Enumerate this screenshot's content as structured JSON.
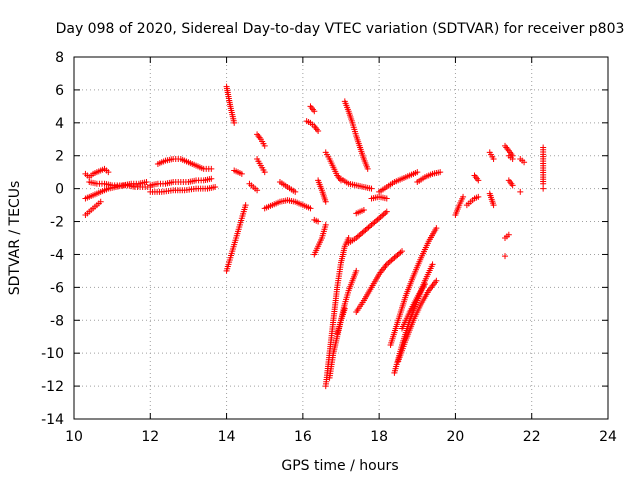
{
  "chart_data": {
    "type": "scatter",
    "title": "Day 098 of 2020, Sidereal Day-to-day VTEC variation (SDTVAR) for receiver p803",
    "xlabel": "GPS time / hours",
    "ylabel": "SDTVAR / TECUs",
    "xlim": [
      10,
      24
    ],
    "ylim": [
      -14,
      8
    ],
    "x_ticks": [
      "10",
      "12",
      "14",
      "16",
      "18",
      "20",
      "22",
      "24"
    ],
    "y_ticks": [
      "8",
      "6",
      "4",
      "2",
      "0",
      "-2",
      "-4",
      "-6",
      "-8",
      "-10",
      "-12",
      "-14"
    ],
    "grid": true,
    "marker": "plus",
    "series_color": "#ff0000",
    "segments": [
      {
        "x": [
          10.3,
          10.4,
          10.5,
          10.6,
          10.7,
          10.8,
          10.9
        ],
        "y": [
          0.9,
          0.7,
          0.9,
          1.0,
          1.1,
          1.2,
          1.0
        ]
      },
      {
        "x": [
          10.3,
          10.4,
          10.5,
          10.6,
          10.7
        ],
        "y": [
          -1.6,
          -1.4,
          -1.2,
          -1.0,
          -0.8
        ]
      },
      {
        "x": [
          10.3,
          10.5,
          10.7,
          10.9,
          11.1,
          11.3,
          11.5,
          11.7,
          11.9
        ],
        "y": [
          -0.6,
          -0.4,
          -0.2,
          0.0,
          0.1,
          0.2,
          0.3,
          0.3,
          0.4
        ]
      },
      {
        "x": [
          10.4,
          10.6,
          10.8,
          11.0,
          11.2,
          11.4,
          11.6,
          11.8,
          12.0
        ],
        "y": [
          0.4,
          0.3,
          0.3,
          0.2,
          0.2,
          0.2,
          0.1,
          0.1,
          0.1
        ]
      },
      {
        "x": [
          12.0,
          12.2,
          12.4,
          12.6,
          12.8,
          13.0,
          13.2,
          13.4,
          13.6
        ],
        "y": [
          0.2,
          0.3,
          0.3,
          0.4,
          0.4,
          0.4,
          0.5,
          0.5,
          0.6
        ]
      },
      {
        "x": [
          12.0,
          12.3,
          12.6,
          12.9,
          13.2,
          13.5,
          13.7
        ],
        "y": [
          -0.2,
          -0.2,
          -0.1,
          -0.1,
          0.0,
          0.0,
          0.1
        ]
      },
      {
        "x": [
          12.2,
          12.4,
          12.6,
          12.8,
          13.0,
          13.2,
          13.4,
          13.6
        ],
        "y": [
          1.5,
          1.7,
          1.8,
          1.8,
          1.6,
          1.4,
          1.2,
          1.2
        ]
      },
      {
        "x": [
          14.0,
          14.05,
          14.1,
          14.15,
          14.2
        ],
        "y": [
          6.2,
          5.6,
          5.0,
          4.5,
          4.0
        ]
      },
      {
        "x": [
          14.0,
          14.1,
          14.2,
          14.3,
          14.4,
          14.5
        ],
        "y": [
          -5.0,
          -4.2,
          -3.4,
          -2.6,
          -1.8,
          -1.0
        ]
      },
      {
        "x": [
          14.2,
          14.3,
          14.4
        ],
        "y": [
          1.1,
          1.0,
          0.9
        ]
      },
      {
        "x": [
          14.6,
          14.7,
          14.8
        ],
        "y": [
          0.3,
          0.1,
          -0.1
        ]
      },
      {
        "x": [
          14.8,
          14.9,
          15.0
        ],
        "y": [
          3.3,
          3.0,
          2.6
        ]
      },
      {
        "x": [
          14.8,
          14.9,
          15.0
        ],
        "y": [
          1.8,
          1.4,
          1.0
        ]
      },
      {
        "x": [
          15.0,
          15.2,
          15.4,
          15.6,
          15.8,
          16.0,
          16.2
        ],
        "y": [
          -1.2,
          -1.0,
          -0.8,
          -0.7,
          -0.8,
          -1.0,
          -1.2
        ]
      },
      {
        "x": [
          15.4,
          15.6,
          15.8
        ],
        "y": [
          0.4,
          0.1,
          -0.2
        ]
      },
      {
        "x": [
          16.1,
          16.2,
          16.3,
          16.4
        ],
        "y": [
          4.1,
          4.0,
          3.8,
          3.5
        ]
      },
      {
        "x": [
          16.2,
          16.3
        ],
        "y": [
          5.0,
          4.7
        ]
      },
      {
        "x": [
          16.4,
          16.3
        ],
        "y": [
          -2.0,
          -1.9
        ]
      },
      {
        "x": [
          16.3,
          16.4,
          16.5,
          16.6
        ],
        "y": [
          -4.0,
          -3.5,
          -3.0,
          -2.2
        ]
      },
      {
        "x": [
          16.4,
          16.5,
          16.6
        ],
        "y": [
          0.5,
          -0.1,
          -0.8
        ]
      },
      {
        "x": [
          16.6,
          16.7,
          16.8,
          16.9,
          17.0
        ],
        "y": [
          2.2,
          1.8,
          1.3,
          0.8,
          0.5
        ]
      },
      {
        "x": [
          16.6,
          16.7,
          16.8,
          16.9,
          17.0,
          17.1,
          17.2
        ],
        "y": [
          -12.0,
          -10.0,
          -8.0,
          -6.0,
          -4.5,
          -3.5,
          -3.0
        ]
      },
      {
        "x": [
          16.7,
          16.8,
          16.9,
          17.0,
          17.1,
          17.2,
          17.3,
          17.4
        ],
        "y": [
          -11.5,
          -10.0,
          -9.0,
          -8.0,
          -7.0,
          -6.2,
          -5.6,
          -5.0
        ]
      },
      {
        "x": [
          16.9,
          17.0,
          17.1
        ],
        "y": [
          -8.8,
          -8.0,
          -7.3
        ]
      },
      {
        "x": [
          17.0,
          17.2,
          17.4,
          17.6,
          17.8
        ],
        "y": [
          0.6,
          0.3,
          0.2,
          0.1,
          0.0
        ]
      },
      {
        "x": [
          17.1,
          17.2,
          17.3,
          17.4,
          17.5,
          17.6,
          17.7
        ],
        "y": [
          5.3,
          4.7,
          4.0,
          3.2,
          2.5,
          1.8,
          1.2
        ]
      },
      {
        "x": [
          17.2,
          17.4,
          17.6,
          17.8,
          18.0,
          18.2
        ],
        "y": [
          -3.3,
          -3.0,
          -2.6,
          -2.2,
          -1.8,
          -1.4
        ]
      },
      {
        "x": [
          17.4,
          17.6,
          17.8,
          18.0,
          18.2,
          18.4,
          18.6
        ],
        "y": [
          -7.5,
          -6.8,
          -6.0,
          -5.2,
          -4.6,
          -4.2,
          -3.8
        ]
      },
      {
        "x": [
          17.8,
          18.0,
          18.2
        ],
        "y": [
          -0.6,
          -0.5,
          -0.6
        ]
      },
      {
        "x": [
          17.4,
          17.5,
          17.6
        ],
        "y": [
          -1.5,
          -1.4,
          -1.3
        ]
      },
      {
        "x": [
          18.0,
          18.2,
          18.4,
          18.6,
          18.8,
          19.0
        ],
        "y": [
          -0.2,
          0.1,
          0.4,
          0.6,
          0.8,
          1.0
        ]
      },
      {
        "x": [
          18.3,
          18.5,
          18.7,
          18.9,
          19.1,
          19.3,
          19.5
        ],
        "y": [
          -9.5,
          -8.0,
          -6.5,
          -5.3,
          -4.2,
          -3.2,
          -2.4
        ]
      },
      {
        "x": [
          18.4,
          18.6,
          18.8,
          19.0,
          19.2,
          19.4
        ],
        "y": [
          -11.2,
          -9.5,
          -8.0,
          -6.8,
          -5.6,
          -4.6
        ]
      },
      {
        "x": [
          18.5,
          18.7,
          18.9,
          19.1,
          19.3,
          19.5
        ],
        "y": [
          -10.5,
          -9.2,
          -8.0,
          -7.0,
          -6.2,
          -5.6
        ]
      },
      {
        "x": [
          18.6,
          18.8,
          19.0,
          19.2
        ],
        "y": [
          -8.5,
          -7.5,
          -6.6,
          -5.8
        ]
      },
      {
        "x": [
          19.0,
          19.2,
          19.4,
          19.6
        ],
        "y": [
          0.4,
          0.7,
          0.9,
          1.0
        ]
      },
      {
        "x": [
          20.0,
          20.1,
          20.2
        ],
        "y": [
          -1.6,
          -1.0,
          -0.5
        ]
      },
      {
        "x": [
          20.3,
          20.4,
          20.5,
          20.6
        ],
        "y": [
          -1.0,
          -0.8,
          -0.6,
          -0.5
        ]
      },
      {
        "x": [
          20.5,
          20.6
        ],
        "y": [
          0.8,
          0.5
        ]
      },
      {
        "x": [
          20.9,
          21.0
        ],
        "y": [
          2.2,
          1.8
        ]
      },
      {
        "x": [
          20.9,
          21.0
        ],
        "y": [
          -0.3,
          -1.0
        ]
      },
      {
        "x": [
          21.3,
          21.4
        ],
        "y": [
          -3.0,
          -2.8
        ]
      },
      {
        "x": [
          21.3
        ],
        "y": [
          -4.1
        ]
      },
      {
        "x": [
          21.4,
          21.5
        ],
        "y": [
          2.0,
          1.8
        ]
      },
      {
        "x": [
          21.3,
          21.4,
          21.5
        ],
        "y": [
          2.6,
          2.3,
          2.0
        ]
      },
      {
        "x": [
          21.4,
          21.5
        ],
        "y": [
          0.5,
          0.2
        ]
      },
      {
        "x": [
          21.7,
          21.8
        ],
        "y": [
          1.8,
          1.6
        ]
      },
      {
        "x": [
          21.7
        ],
        "y": [
          -0.2
        ]
      },
      {
        "x": [
          22.3,
          22.3,
          22.3
        ],
        "y": [
          2.5,
          0.7,
          0.3
        ]
      },
      {
        "x": [
          22.3
        ],
        "y": [
          0.0
        ]
      }
    ]
  }
}
